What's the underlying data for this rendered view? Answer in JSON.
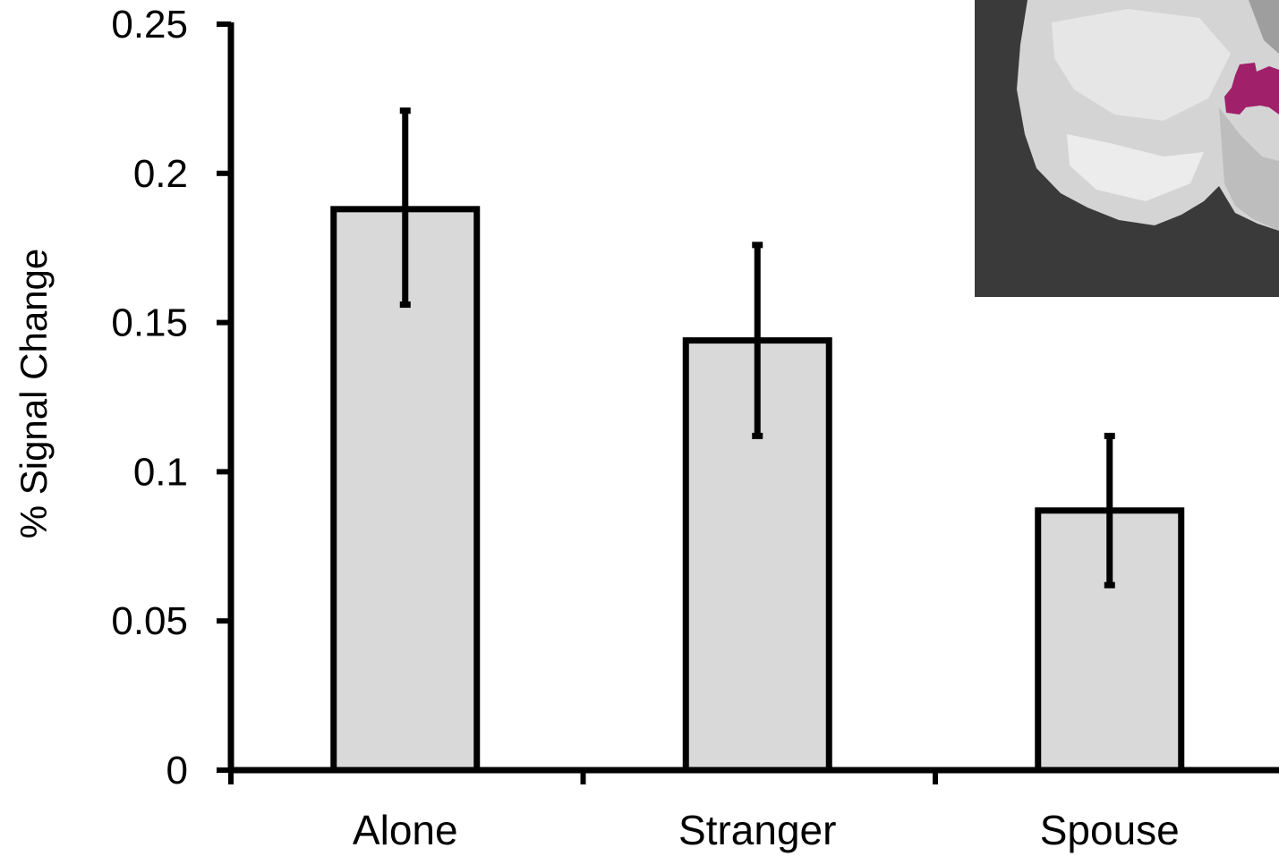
{
  "chart_data": {
    "type": "bar",
    "categories": [
      "Alone",
      "Stranger",
      "Spouse"
    ],
    "values": [
      0.188,
      0.144,
      0.087
    ],
    "error_low": [
      0.156,
      0.112,
      0.062
    ],
    "error_high": [
      0.221,
      0.176,
      0.112
    ],
    "ylabel": "% Signal Change",
    "xlabel": "",
    "ylim": [
      0,
      0.25
    ],
    "yticks": [
      {
        "value": 0,
        "label": "0"
      },
      {
        "value": 0.05,
        "label": "0.05"
      },
      {
        "value": 0.1,
        "label": "0.1"
      },
      {
        "value": 0.15,
        "label": "0.15"
      },
      {
        "value": 0.2,
        "label": "0.2"
      },
      {
        "value": 0.25,
        "label": "0.25"
      }
    ],
    "grid": false,
    "colors": {
      "bar_fill": "#d9d9d9",
      "bar_stroke": "#000000",
      "inset_background": "#3a3a3a",
      "inset_highlight": "#a0206a"
    }
  }
}
